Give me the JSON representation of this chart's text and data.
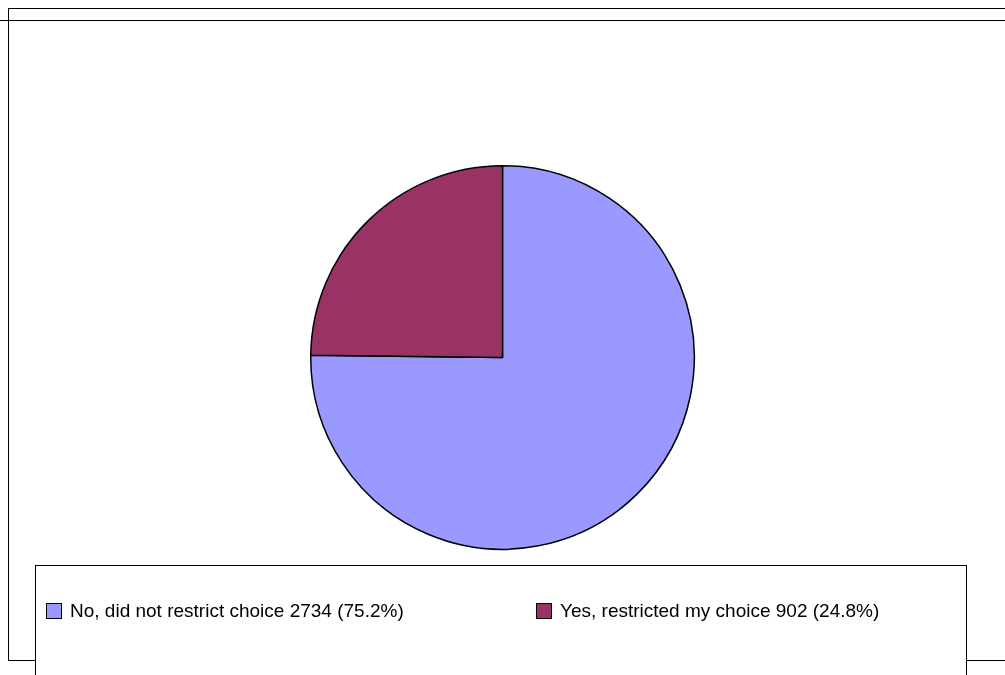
{
  "chart_data": {
    "type": "pie",
    "categories": [
      "No, did not restrict choice 2734 (75.2%)",
      "Yes, restricted my choice 902 (24.8%)"
    ],
    "values": [
      2734,
      902
    ],
    "colors": [
      "#9999ff",
      "#993366"
    ],
    "legend": "bottom"
  }
}
